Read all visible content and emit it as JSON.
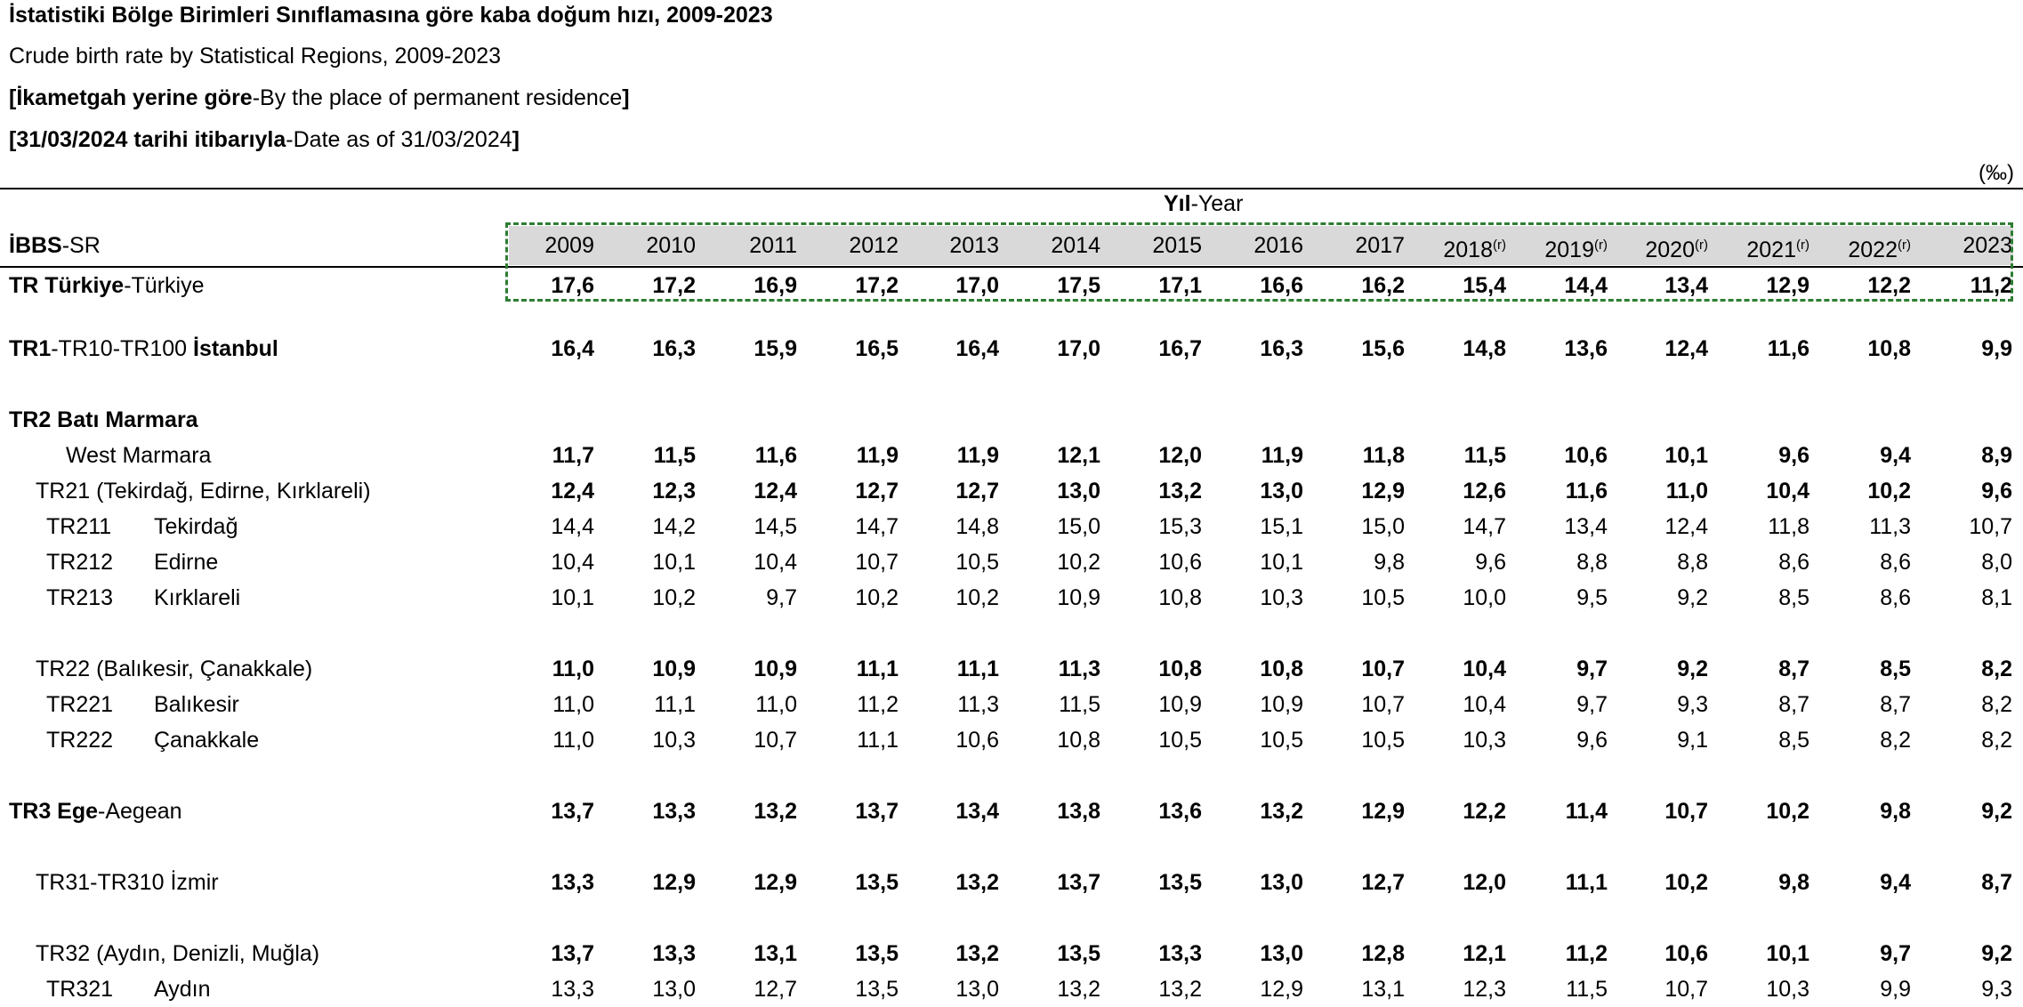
{
  "title_tr": "İstatistiki Bölge Birimleri Sınıflamasına göre kaba doğum hızı, 2009-2023",
  "title_en": "Crude birth rate by Statistical Regions, 2009-2023",
  "residence_tr": "İkametgah yerine göre",
  "residence_en": "-By the place of permanent residence",
  "date_tr": "31/03/2024 tarihi itibarıyla",
  "date_en": "-Date as of 31/03/2024",
  "unit": "(‰)",
  "year_header_tr": "Yıl",
  "year_header_en": "-Year",
  "col_header_tr": "İBBS",
  "col_header_en": "-SR",
  "years": [
    {
      "label": "2009",
      "note": ""
    },
    {
      "label": "2010",
      "note": ""
    },
    {
      "label": "2011",
      "note": ""
    },
    {
      "label": "2012",
      "note": ""
    },
    {
      "label": "2013",
      "note": ""
    },
    {
      "label": "2014",
      "note": ""
    },
    {
      "label": "2015",
      "note": ""
    },
    {
      "label": "2016",
      "note": ""
    },
    {
      "label": "2017",
      "note": ""
    },
    {
      "label": "2018",
      "note": "(r)"
    },
    {
      "label": "2019",
      "note": "(r)"
    },
    {
      "label": "2020",
      "note": "(r)"
    },
    {
      "label": "2021",
      "note": "(r)"
    },
    {
      "label": "2022",
      "note": "(r)"
    },
    {
      "label": "2023",
      "note": ""
    }
  ],
  "rows": [
    {
      "bold": "TR Türkiye",
      "rest": "-Türkiye",
      "code": "",
      "indent": 0,
      "bold_values": true,
      "values": [
        "17,6",
        "17,2",
        "16,9",
        "17,2",
        "17,0",
        "17,5",
        "17,1",
        "16,6",
        "16,2",
        "15,4",
        "14,4",
        "13,4",
        "12,9",
        "12,2",
        "11,2"
      ]
    },
    {
      "bold": "TR1",
      "rest": "-TR10-TR100 ",
      "bold2": "İstanbul",
      "code": "",
      "indent": 0,
      "bold_values": true,
      "values": [
        "16,4",
        "16,3",
        "15,9",
        "16,5",
        "16,4",
        "17,0",
        "16,7",
        "16,3",
        "15,6",
        "14,8",
        "13,6",
        "12,4",
        "11,6",
        "10,8",
        "9,9"
      ]
    },
    {
      "bold": "TR2 Batı Marmara",
      "rest": "",
      "code": "",
      "indent": 0,
      "bold_values": true,
      "values": []
    },
    {
      "bold": "",
      "rest": "West Marmara",
      "code": "",
      "indent": 3,
      "bold_values": true,
      "values": [
        "11,7",
        "11,5",
        "11,6",
        "11,9",
        "11,9",
        "12,1",
        "12,0",
        "11,9",
        "11,8",
        "11,5",
        "10,6",
        "10,1",
        "9,6",
        "9,4",
        "8,9"
      ]
    },
    {
      "bold": "",
      "rest": "TR21 (Tekirdağ, Edirne, Kırklareli)",
      "code": "",
      "indent": 1,
      "bold_values": true,
      "values": [
        "12,4",
        "12,3",
        "12,4",
        "12,7",
        "12,7",
        "13,0",
        "13,2",
        "13,0",
        "12,9",
        "12,6",
        "11,6",
        "11,0",
        "10,4",
        "10,2",
        "9,6"
      ]
    },
    {
      "bold": "",
      "rest": "Tekirdağ",
      "code": "TR211",
      "indent": 2,
      "bold_values": false,
      "values": [
        "14,4",
        "14,2",
        "14,5",
        "14,7",
        "14,8",
        "15,0",
        "15,3",
        "15,1",
        "15,0",
        "14,7",
        "13,4",
        "12,4",
        "11,8",
        "11,3",
        "10,7"
      ]
    },
    {
      "bold": "",
      "rest": "Edirne",
      "code": "TR212",
      "indent": 2,
      "bold_values": false,
      "values": [
        "10,4",
        "10,1",
        "10,4",
        "10,7",
        "10,5",
        "10,2",
        "10,6",
        "10,1",
        "9,8",
        "9,6",
        "8,8",
        "8,8",
        "8,6",
        "8,6",
        "8,0"
      ]
    },
    {
      "bold": "",
      "rest": "Kırklareli",
      "code": "TR213",
      "indent": 2,
      "bold_values": false,
      "values": [
        "10,1",
        "10,2",
        "9,7",
        "10,2",
        "10,2",
        "10,9",
        "10,8",
        "10,3",
        "10,5",
        "10,0",
        "9,5",
        "9,2",
        "8,5",
        "8,6",
        "8,1"
      ]
    },
    {
      "bold": "",
      "rest": "TR22 (Balıkesir, Çanakkale)",
      "code": "",
      "indent": 1,
      "bold_values": true,
      "values": [
        "11,0",
        "10,9",
        "10,9",
        "11,1",
        "11,1",
        "11,3",
        "10,8",
        "10,8",
        "10,7",
        "10,4",
        "9,7",
        "9,2",
        "8,7",
        "8,5",
        "8,2"
      ]
    },
    {
      "bold": "",
      "rest": "Balıkesir",
      "code": "TR221",
      "indent": 2,
      "bold_values": false,
      "values": [
        "11,0",
        "11,1",
        "11,0",
        "11,2",
        "11,3",
        "11,5",
        "10,9",
        "10,9",
        "10,7",
        "10,4",
        "9,7",
        "9,3",
        "8,7",
        "8,7",
        "8,2"
      ]
    },
    {
      "bold": "",
      "rest": "Çanakkale",
      "code": "TR222",
      "indent": 2,
      "bold_values": false,
      "values": [
        "11,0",
        "10,3",
        "10,7",
        "11,1",
        "10,6",
        "10,8",
        "10,5",
        "10,5",
        "10,5",
        "10,3",
        "9,6",
        "9,1",
        "8,5",
        "8,2",
        "8,2"
      ]
    },
    {
      "bold": "TR3 Ege",
      "rest": "-Aegean",
      "code": "",
      "indent": 0,
      "bold_values": true,
      "values": [
        "13,7",
        "13,3",
        "13,2",
        "13,7",
        "13,4",
        "13,8",
        "13,6",
        "13,2",
        "12,9",
        "12,2",
        "11,4",
        "10,7",
        "10,2",
        "9,8",
        "9,2"
      ]
    },
    {
      "bold": "",
      "rest": "TR31-TR310 İzmir",
      "code": "",
      "indent": 1,
      "bold_values": true,
      "values": [
        "13,3",
        "12,9",
        "12,9",
        "13,5",
        "13,2",
        "13,7",
        "13,5",
        "13,0",
        "12,7",
        "12,0",
        "11,1",
        "10,2",
        "9,8",
        "9,4",
        "8,7"
      ]
    },
    {
      "bold": "",
      "rest": "TR32 (Aydın, Denizli, Muğla)",
      "code": "",
      "indent": 1,
      "bold_values": true,
      "values": [
        "13,7",
        "13,3",
        "13,1",
        "13,5",
        "13,2",
        "13,5",
        "13,3",
        "13,0",
        "12,8",
        "12,1",
        "11,2",
        "10,6",
        "10,1",
        "9,7",
        "9,2"
      ]
    },
    {
      "bold": "",
      "rest": "Aydın",
      "code": "TR321",
      "indent": 2,
      "bold_values": false,
      "values": [
        "13,3",
        "13,0",
        "12,7",
        "13,5",
        "13,0",
        "13,2",
        "13,2",
        "12,9",
        "13,1",
        "12,3",
        "11,5",
        "10,7",
        "10,3",
        "9,9",
        "9,3"
      ]
    }
  ]
}
